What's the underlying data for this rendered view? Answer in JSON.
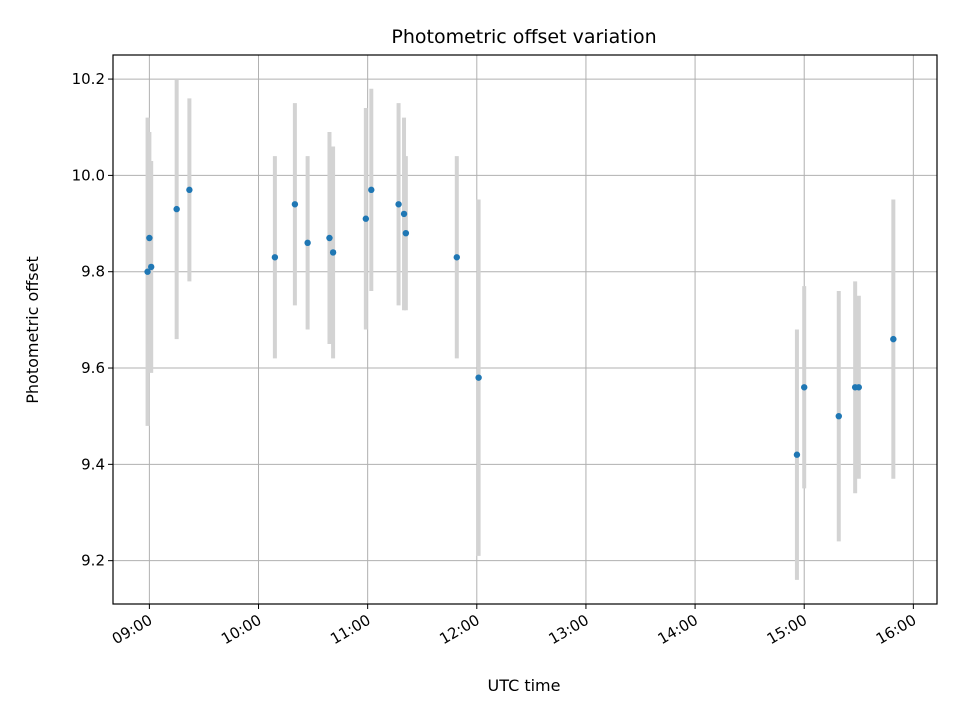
{
  "chart_data": {
    "type": "scatter",
    "title": "Photometric offset variation",
    "xlabel": "UTC time",
    "ylabel": "Photometric offset",
    "x_unit": "time of day (UTC)",
    "xlim": [
      "08:40",
      "16:13"
    ],
    "ylim": [
      9.11,
      10.25
    ],
    "x_ticks": [
      "09:00",
      "10:00",
      "11:00",
      "12:00",
      "13:00",
      "14:00",
      "15:00",
      "16:00"
    ],
    "y_ticks": [
      9.2,
      9.4,
      9.6,
      9.8,
      10.0,
      10.2
    ],
    "y_tick_labels": [
      "9.2",
      "9.4",
      "9.6",
      "9.8",
      "10.0",
      "10.2"
    ],
    "grid": true,
    "colors": {
      "point": "#1f77b4",
      "errorbar": "#d3d3d3",
      "grid": "#b0b0b0"
    },
    "points": [
      {
        "x": "08:59",
        "y": 9.8,
        "err": 0.32
      },
      {
        "x": "09:00",
        "y": 9.87,
        "err": 0.22
      },
      {
        "x": "09:01",
        "y": 9.81,
        "err": 0.22
      },
      {
        "x": "09:15",
        "y": 9.93,
        "err": 0.27
      },
      {
        "x": "09:22",
        "y": 9.97,
        "err": 0.19
      },
      {
        "x": "10:09",
        "y": 9.83,
        "err": 0.21
      },
      {
        "x": "10:20",
        "y": 9.94,
        "err": 0.21
      },
      {
        "x": "10:27",
        "y": 9.86,
        "err": 0.18
      },
      {
        "x": "10:39",
        "y": 9.87,
        "err": 0.22
      },
      {
        "x": "10:41",
        "y": 9.84,
        "err": 0.22
      },
      {
        "x": "10:59",
        "y": 9.91,
        "err": 0.23
      },
      {
        "x": "11:02",
        "y": 9.97,
        "err": 0.21
      },
      {
        "x": "11:17",
        "y": 9.94,
        "err": 0.21
      },
      {
        "x": "11:20",
        "y": 9.92,
        "err": 0.2
      },
      {
        "x": "11:21",
        "y": 9.88,
        "err": 0.16
      },
      {
        "x": "11:49",
        "y": 9.83,
        "err": 0.21
      },
      {
        "x": "12:01",
        "y": 9.58,
        "err": 0.37
      },
      {
        "x": "14:56",
        "y": 9.42,
        "err": 0.26
      },
      {
        "x": "15:00",
        "y": 9.56,
        "err": 0.21
      },
      {
        "x": "15:19",
        "y": 9.5,
        "err": 0.26
      },
      {
        "x": "15:28",
        "y": 9.56,
        "err": 0.22
      },
      {
        "x": "15:30",
        "y": 9.56,
        "err": 0.19
      },
      {
        "x": "15:49",
        "y": 9.66,
        "err": 0.29
      }
    ]
  }
}
